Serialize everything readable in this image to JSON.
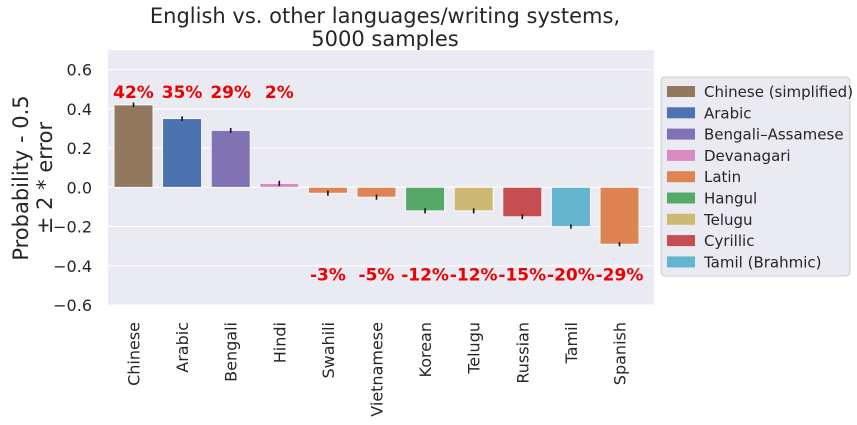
{
  "chart_data": {
    "type": "bar",
    "title": [
      "English vs. other languages/writing systems,",
      "5000 samples"
    ],
    "ylabel": [
      "Probability - 0.5",
      "± 2 * error"
    ],
    "xlabel": "",
    "ylim": [
      -0.6,
      0.7
    ],
    "yticks": [
      "0.6",
      "0.4",
      "0.2",
      "0.0",
      "−0.2",
      "−0.4",
      "−0.6"
    ],
    "ytick_values": [
      0.6,
      0.4,
      0.2,
      0.0,
      -0.2,
      -0.4,
      -0.6
    ],
    "grid": true,
    "legend_placement": "outside-right",
    "categories": [
      "Chinese",
      "Arabic",
      "Bengali",
      "Hindi",
      "Swahili",
      "Vietnamese",
      "Korean",
      "Telugu",
      "Russian",
      "Tamil",
      "Spanish"
    ],
    "values": [
      0.42,
      0.35,
      0.29,
      0.02,
      -0.03,
      -0.05,
      -0.12,
      -0.12,
      -0.15,
      -0.2,
      -0.29
    ],
    "error": [
      0.012,
      0.012,
      0.012,
      0.013,
      0.013,
      0.013,
      0.013,
      0.013,
      0.012,
      0.011,
      0.011
    ],
    "labels": [
      "42%",
      "35%",
      "29%",
      "2%",
      "-3%",
      "-5%",
      "-12%",
      "-12%",
      "-15%",
      "-20%",
      "-29%"
    ],
    "bar_colors": [
      "#937860",
      "#4c72b0",
      "#8172b3",
      "#da8bc3",
      "#dd8452",
      "#dd8452",
      "#55a868",
      "#ccb974",
      "#c44e52",
      "#64b5cd",
      "#dd8452"
    ],
    "label_color": "#ee0000",
    "legend": [
      {
        "name": "Chinese (simplified)",
        "color": "#937860"
      },
      {
        "name": "Arabic",
        "color": "#4c72b0"
      },
      {
        "name": "Bengali–Assamese",
        "color": "#8172b3"
      },
      {
        "name": "Devanagari",
        "color": "#da8bc3"
      },
      {
        "name": "Latin",
        "color": "#dd8452"
      },
      {
        "name": "Hangul",
        "color": "#55a868"
      },
      {
        "name": "Telugu",
        "color": "#ccb974"
      },
      {
        "name": "Cyrillic",
        "color": "#c44e52"
      },
      {
        "name": "Tamil (Brahmic)",
        "color": "#64b5cd"
      }
    ],
    "plot_background": "#eaeaf2",
    "grid_color": "#ffffff"
  }
}
